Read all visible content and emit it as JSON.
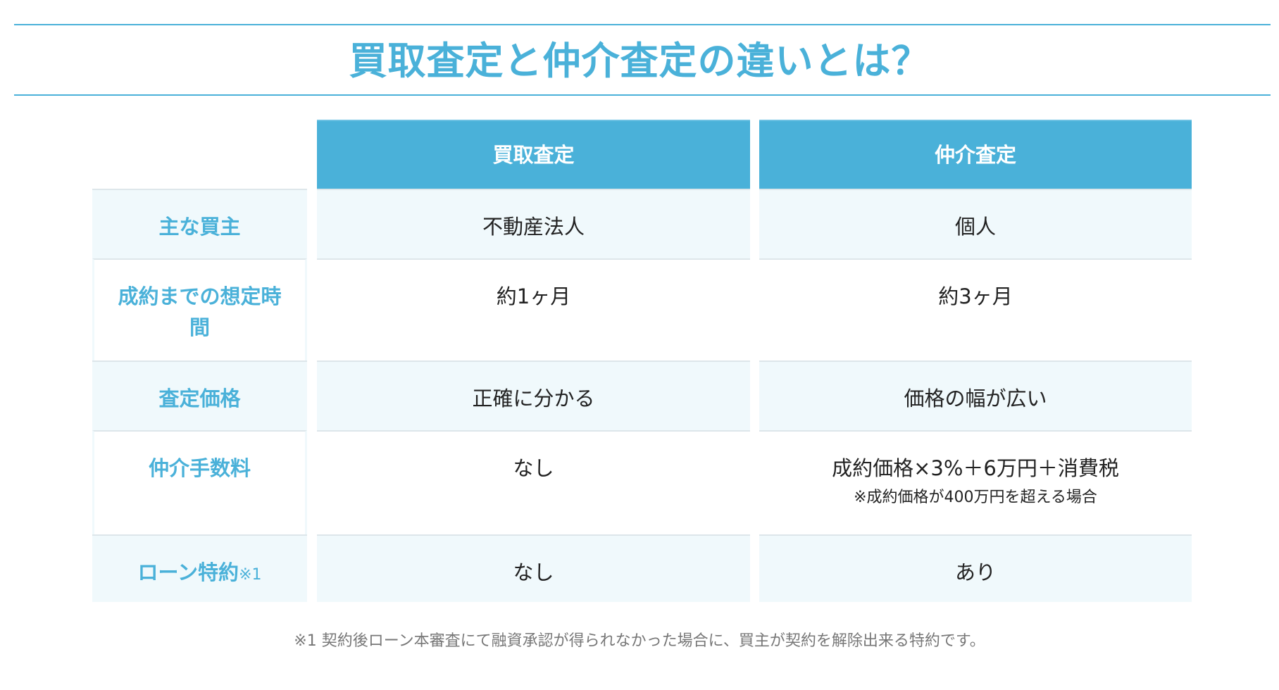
{
  "title": "買取査定と仲介査定の違いとは？",
  "colors": {
    "accent": "#4ab1d9",
    "row_bg": "#f0f9fc"
  },
  "table": {
    "headers": [
      "",
      "買取査定",
      "仲介査定"
    ],
    "rows": [
      {
        "label": "主な買主",
        "buy": "不動産法人",
        "brokerage": "個人"
      },
      {
        "label": "成約までの想定時間",
        "buy": "約1ヶ月",
        "brokerage": "約3ヶ月"
      },
      {
        "label": "査定価格",
        "buy": "正確に分かる",
        "brokerage": "価格の幅が広い"
      },
      {
        "label": "仲介手数料",
        "buy": "なし",
        "brokerage": "成約価格×3%＋6万円＋消費税",
        "brokerage_note": "※成約価格が400万円を超える場合"
      },
      {
        "label": "ローン特約",
        "label_mark": "※1",
        "buy": "なし",
        "brokerage": "あり"
      }
    ]
  },
  "footnote": "※1 契約後ローン本審査にて融資承認が得られなかった場合に、買主が契約を解除出来る特約です。"
}
